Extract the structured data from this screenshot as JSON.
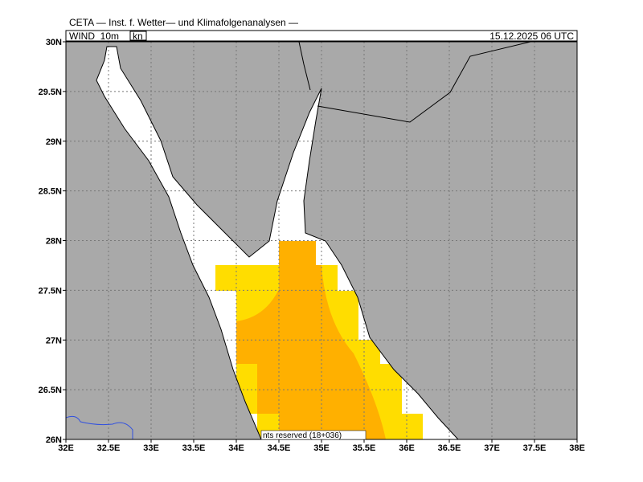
{
  "header": {
    "title": "CETA — Inst. f. Wetter— und Klimafolgenanalysen —",
    "field": "WIND_10m",
    "unit": "kn",
    "datetime": "15.12.2025 06 UTC",
    "footer": "nts reserved (18+036)"
  },
  "map": {
    "xticks": [
      {
        "value": 32,
        "label": "32E"
      },
      {
        "value": 32.5,
        "label": "32.5E"
      },
      {
        "value": 33,
        "label": "33E"
      },
      {
        "value": 33.5,
        "label": "33.5E"
      },
      {
        "value": 34,
        "label": "34E"
      },
      {
        "value": 34.5,
        "label": "34.5E"
      },
      {
        "value": 35,
        "label": "35E"
      },
      {
        "value": 35.5,
        "label": "35.5E"
      },
      {
        "value": 36,
        "label": "36E"
      },
      {
        "value": 36.5,
        "label": "36.5E"
      },
      {
        "value": 37,
        "label": "37E"
      },
      {
        "value": 37.5,
        "label": "37.5E"
      },
      {
        "value": 38,
        "label": "38E"
      }
    ],
    "yticks": [
      {
        "value": 26,
        "label": "26N"
      },
      {
        "value": 26.5,
        "label": "26.5N"
      },
      {
        "value": 27,
        "label": "27N"
      },
      {
        "value": 27.5,
        "label": "27.5N"
      },
      {
        "value": 28,
        "label": "28N"
      },
      {
        "value": 28.5,
        "label": "28.5N"
      },
      {
        "value": 29,
        "label": "29N"
      },
      {
        "value": 29.5,
        "label": "29.5N"
      },
      {
        "value": 30,
        "label": "30N"
      }
    ]
  }
}
